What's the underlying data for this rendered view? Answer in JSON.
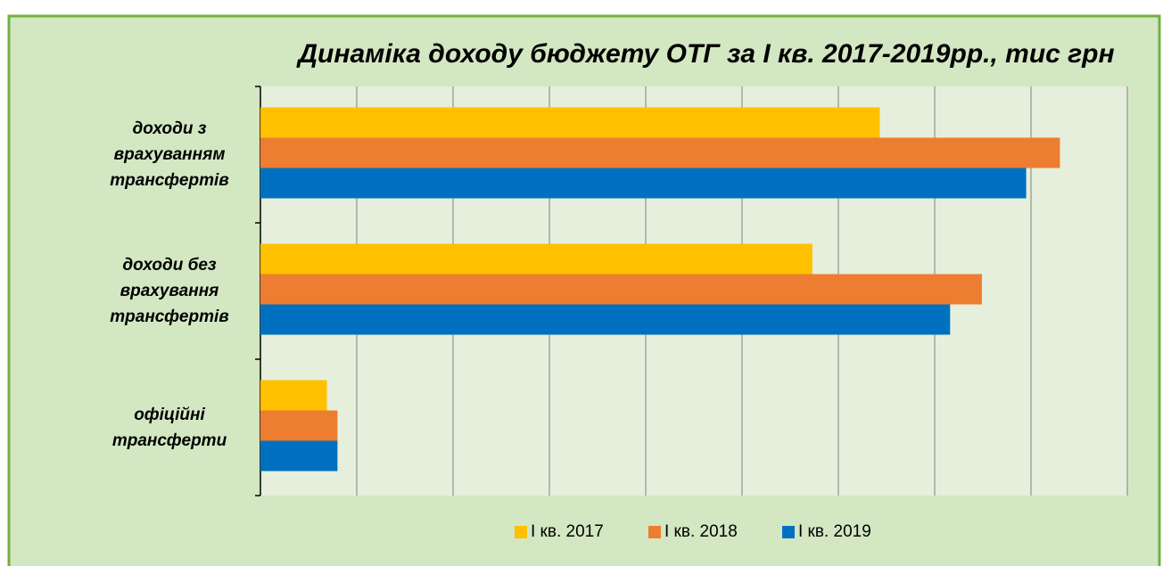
{
  "chart_data": {
    "type": "barh",
    "title": "Динаміка доходу бюджету ОТГ за І кв. 2017-2019рр., тис грн",
    "categories": [
      "доходи з врахуванням трансфертів",
      "доходи без врахування трансфертів",
      "офіційні трансферти"
    ],
    "series": [
      {
        "name": "І кв. 2017",
        "color": "#ffc000",
        "values": [
          6.43,
          5.73,
          0.69
        ]
      },
      {
        "name": "І кв. 2018",
        "color": "#ed7d31",
        "values": [
          8.3,
          7.49,
          0.8
        ]
      },
      {
        "name": "І кв. 2019",
        "color": "#0070c0",
        "values": [
          7.95,
          7.16,
          0.8
        ]
      }
    ],
    "xlim": [
      0,
      9
    ],
    "xticks": [
      0,
      1,
      2,
      3,
      4,
      5,
      6,
      7,
      8,
      9
    ],
    "grid": true,
    "legend": "bottom"
  }
}
